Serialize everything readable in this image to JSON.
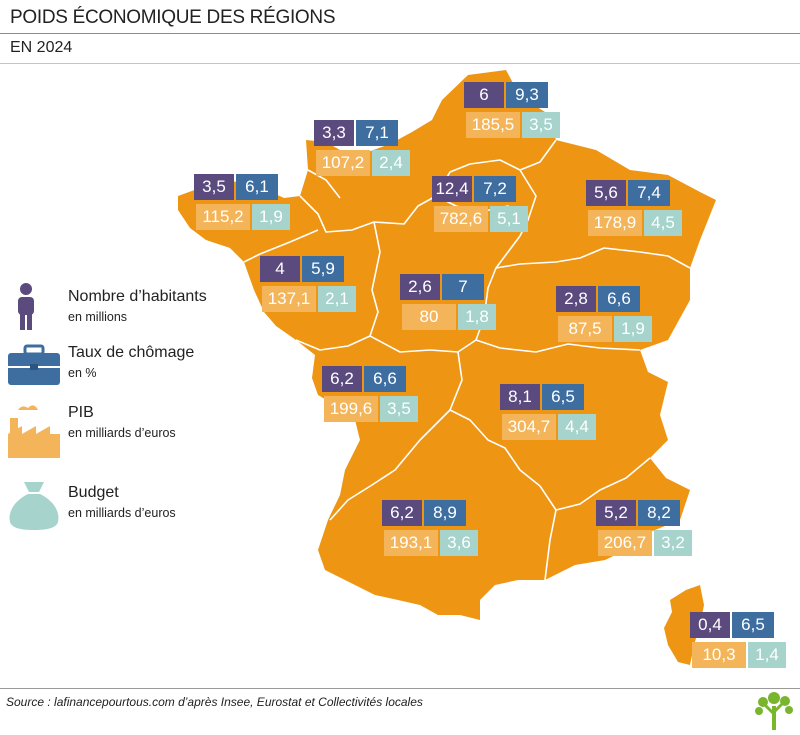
{
  "header": {
    "title": "POIDS ÉCONOMIQUE DES RÉGIONS",
    "subtitle": "EN 2024"
  },
  "colors": {
    "map_fill": "#ee9513",
    "population": "#5b4a7e",
    "chomage": "#3e6ea0",
    "pib": "#f4b55a",
    "budget": "#a6d3cb"
  },
  "legend": [
    {
      "icon": "person-icon",
      "label": "Nombre d’habitants",
      "sub": "en millions"
    },
    {
      "icon": "briefcase-icon",
      "label": "Taux de chômage",
      "sub": "en %"
    },
    {
      "icon": "factory-icon",
      "label": "PIB",
      "sub": "en milliards d’euros"
    },
    {
      "icon": "money-bag-icon",
      "label": "Budget",
      "sub": "en milliards d’euros"
    }
  ],
  "regions": [
    {
      "pop": "6",
      "chomage": "9,3",
      "pib": "185,5",
      "budget": "3,5"
    },
    {
      "pop": "3,3",
      "chomage": "7,1",
      "pib": "107,2",
      "budget": "2,4"
    },
    {
      "pop": "3,5",
      "chomage": "6,1",
      "pib": "115,2",
      "budget": "1,9"
    },
    {
      "pop": "12,4",
      "chomage": "7,2",
      "pib": "782,6",
      "budget": "5,1"
    },
    {
      "pop": "5,6",
      "chomage": "7,4",
      "pib": "178,9",
      "budget": "4,5"
    },
    {
      "pop": "4",
      "chomage": "5,9",
      "pib": "137,1",
      "budget": "2,1"
    },
    {
      "pop": "2,6",
      "chomage": "7",
      "pib": "80",
      "budget": "1,8"
    },
    {
      "pop": "2,8",
      "chomage": "6,6",
      "pib": "87,5",
      "budget": "1,9"
    },
    {
      "pop": "6,2",
      "chomage": "6,6",
      "pib": "199,6",
      "budget": "3,5"
    },
    {
      "pop": "8,1",
      "chomage": "6,5",
      "pib": "304,7",
      "budget": "4,4"
    },
    {
      "pop": "6,2",
      "chomage": "8,9",
      "pib": "193,1",
      "budget": "3,6"
    },
    {
      "pop": "5,2",
      "chomage": "8,2",
      "pib": "206,7",
      "budget": "3,2"
    },
    {
      "pop": "0,4",
      "chomage": "6,5",
      "pib": "10,3",
      "budget": "1,4"
    }
  ],
  "footer": {
    "source": "Source : lafinancepourtous.com d’après Insee, Eurostat et Collectivités locales"
  }
}
